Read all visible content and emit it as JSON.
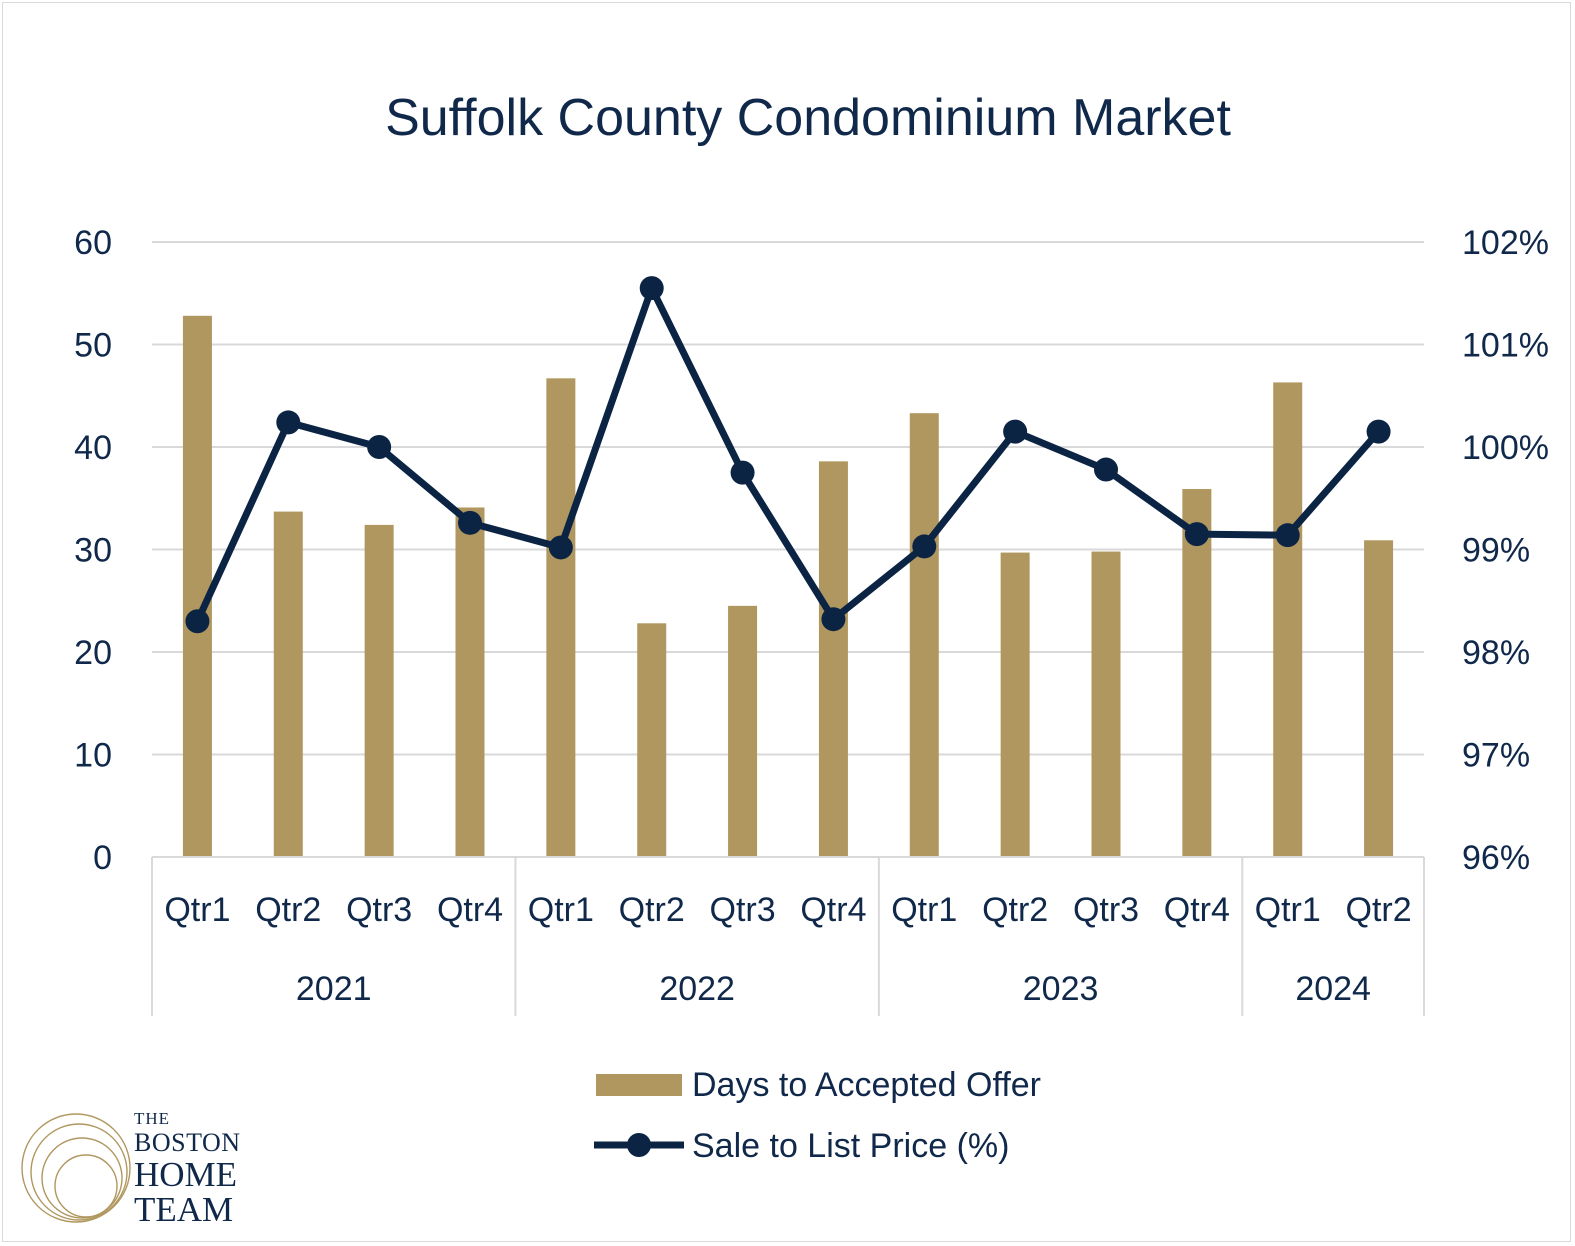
{
  "chart_data": {
    "type": "bar+line",
    "title": "Suffolk County Condominium Market",
    "groups": [
      {
        "label": "2021",
        "count": 4
      },
      {
        "label": "2022",
        "count": 4
      },
      {
        "label": "2023",
        "count": 4
      },
      {
        "label": "2024",
        "count": 2
      }
    ],
    "categories": [
      "Qtr1",
      "Qtr2",
      "Qtr3",
      "Qtr4",
      "Qtr1",
      "Qtr2",
      "Qtr3",
      "Qtr4",
      "Qtr1",
      "Qtr2",
      "Qtr3",
      "Qtr4",
      "Qtr1",
      "Qtr2"
    ],
    "y_left": {
      "min": 0,
      "max": 60,
      "step": 10,
      "ticks": [
        "0",
        "10",
        "20",
        "30",
        "40",
        "50",
        "60"
      ]
    },
    "y_right": {
      "min": 96,
      "max": 102,
      "step": 1,
      "ticks": [
        "96%",
        "97%",
        "98%",
        "99%",
        "100%",
        "101%",
        "102%"
      ]
    },
    "series": [
      {
        "name": "Days to Accepted Offer",
        "type": "bar",
        "axis": "left",
        "color": "#b0975f",
        "values": [
          52.8,
          33.7,
          32.4,
          34.1,
          46.7,
          22.8,
          24.5,
          38.6,
          43.3,
          29.7,
          29.8,
          35.9,
          46.3,
          30.9
        ]
      },
      {
        "name": "Sale to List Price (%)",
        "type": "line",
        "axis": "right",
        "color": "#0c2444",
        "values": [
          98.3,
          100.24,
          100.0,
          99.26,
          99.02,
          101.55,
          99.75,
          98.32,
          99.03,
          100.15,
          99.78,
          99.15,
          99.14,
          100.15
        ]
      }
    ],
    "legend_position": "bottom"
  },
  "brand": {
    "line1": "THE",
    "line2": "BOSTON",
    "line3": "HOME",
    "line4": "TEAM",
    "gold": "#b0975f",
    "navy": "#10284a"
  }
}
